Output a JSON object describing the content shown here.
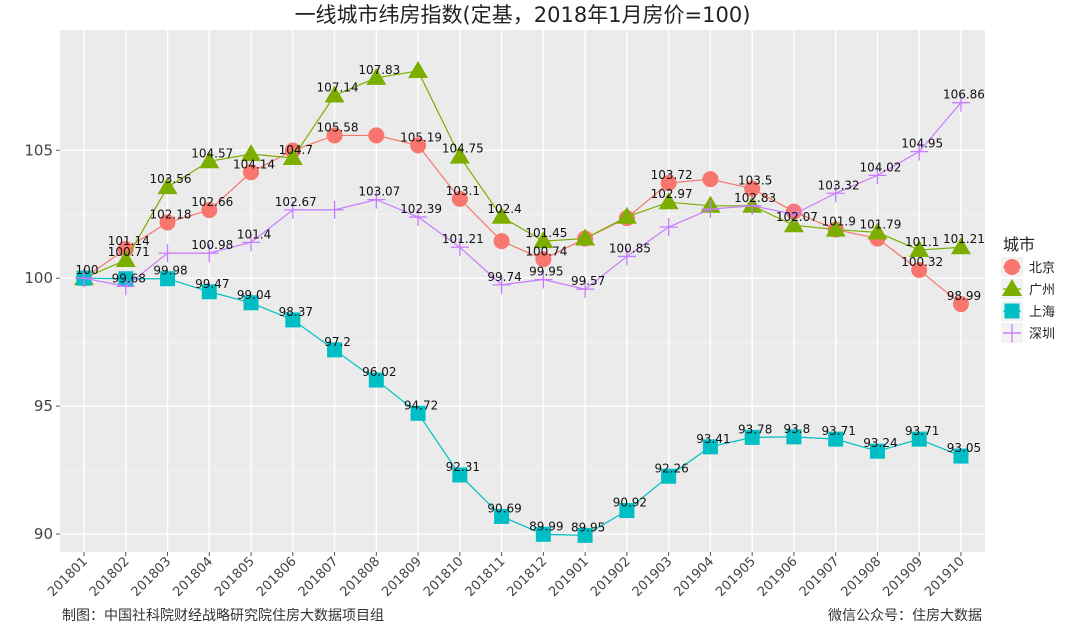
{
  "footer": {
    "left": "制图：中国社科院财经战略研究院住房大数据项目组",
    "right": "微信公众号：住房大数据"
  },
  "chart_data": {
    "type": "line",
    "title": "一线城市纬房指数(定基，2018年1月房价=100)",
    "xlabel": "",
    "ylabel": "",
    "categories": [
      "201801",
      "201802",
      "201803",
      "201804",
      "201805",
      "201806",
      "201807",
      "201808",
      "201809",
      "201810",
      "201811",
      "201812",
      "201901",
      "201902",
      "201903",
      "201904",
      "201905",
      "201906",
      "201907",
      "201908",
      "201909",
      "201910"
    ],
    "yticks": [
      90,
      95,
      100,
      105
    ],
    "ylim": [
      89.3,
      109.7
    ],
    "grid": true,
    "background": "#EBEBEB",
    "legend": {
      "title": "城市",
      "position": "right"
    },
    "series": [
      {
        "name": "北京",
        "marker": "circle",
        "color": "#F8766D",
        "values": [
          100,
          101.14,
          102.18,
          102.66,
          104.14,
          104.99,
          105.58,
          105.58,
          105.19,
          103.1,
          101.45,
          100.74,
          101.55,
          102.35,
          103.72,
          103.87,
          103.5,
          102.6,
          101.9,
          101.55,
          100.32,
          98.99
        ],
        "labels": [
          "100",
          "101.14",
          "102.18",
          "102.66",
          "104.14",
          "",
          "105.58",
          "",
          "105.19",
          "103.1",
          "",
          "100.74",
          "",
          "",
          "103.72",
          "",
          "103.5",
          "",
          "101.9",
          "",
          "100.32",
          "98.99"
        ]
      },
      {
        "name": "广州",
        "marker": "triangle",
        "color": "#7CAE00",
        "values": [
          100,
          100.71,
          103.56,
          104.57,
          104.85,
          104.7,
          107.14,
          107.83,
          108.1,
          104.75,
          102.4,
          101.45,
          101.55,
          102.4,
          102.97,
          102.83,
          102.83,
          102.07,
          101.9,
          101.79,
          101.1,
          101.21
        ],
        "labels": [
          "",
          "100.71",
          "103.56",
          "104.57",
          "",
          "104.7",
          "107.14",
          "107.83",
          "",
          "104.75",
          "102.4",
          "101.45",
          "",
          "",
          "102.97",
          "",
          "102.83",
          "102.07",
          "",
          "101.79",
          "101.1",
          "101.21"
        ]
      },
      {
        "name": "上海",
        "marker": "square",
        "color": "#00BFC4",
        "values": [
          100,
          99.98,
          99.98,
          99.47,
          99.04,
          98.37,
          97.2,
          96.02,
          94.72,
          92.31,
          90.69,
          89.99,
          89.95,
          90.92,
          92.26,
          93.41,
          93.78,
          93.8,
          93.71,
          93.24,
          93.71,
          93.05
        ],
        "labels": [
          "",
          "",
          "99.98",
          "99.47",
          "99.04",
          "98.37",
          "97.2",
          "96.02",
          "94.72",
          "92.31",
          "90.69",
          "89.99",
          "89.95",
          "90.92",
          "92.26",
          "93.41",
          "93.78",
          "93.8",
          "93.71",
          "93.24",
          "93.71",
          "93.05"
        ]
      },
      {
        "name": "深圳",
        "marker": "cross",
        "color": "#C77CFF",
        "values": [
          100,
          99.68,
          100.98,
          100.98,
          101.4,
          102.67,
          102.67,
          103.07,
          102.39,
          101.21,
          99.74,
          99.95,
          99.57,
          100.85,
          102.0,
          102.7,
          102.83,
          102.5,
          103.32,
          104.02,
          104.95,
          106.86
        ],
        "labels": [
          "",
          "99.68",
          "",
          "100.98",
          "101.4",
          "102.67",
          "",
          "103.07",
          "102.39",
          "101.21",
          "99.74",
          "99.95",
          "99.57",
          "100.85",
          "",
          "",
          "",
          "",
          "103.32",
          "104.02",
          "104.95",
          "106.86"
        ]
      }
    ]
  }
}
